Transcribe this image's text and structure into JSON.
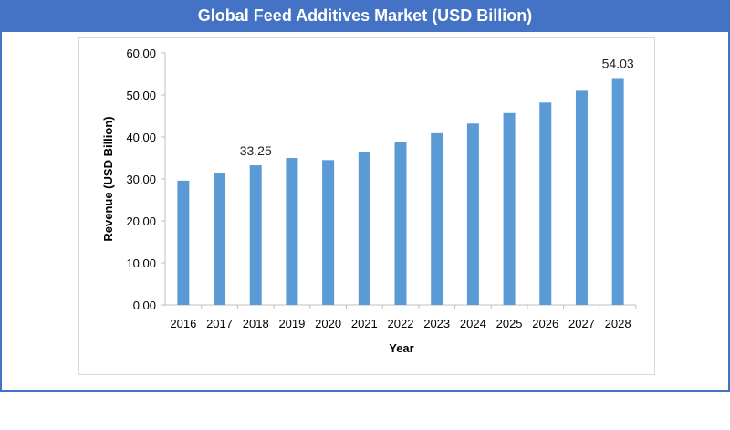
{
  "chart_data": {
    "type": "bar",
    "title": "Global Feed Additives Market (USD Billion)",
    "xlabel": "Year",
    "ylabel": "Revenue  (USD Billion)",
    "ylim": [
      0,
      60
    ],
    "yticks": [
      "0.00",
      "10.00",
      "20.00",
      "30.00",
      "40.00",
      "50.00",
      "60.00"
    ],
    "categories": [
      "2016",
      "2017",
      "2018",
      "2019",
      "2020",
      "2021",
      "2022",
      "2023",
      "2024",
      "2025",
      "2026",
      "2027",
      "2028"
    ],
    "values": [
      29.6,
      31.3,
      33.25,
      35.0,
      34.5,
      36.5,
      38.7,
      40.9,
      43.2,
      45.7,
      48.2,
      51.0,
      54.03
    ],
    "data_labels": [
      {
        "index": 2,
        "text": "33.25"
      },
      {
        "index": 12,
        "text": "54.03"
      }
    ],
    "bar_color": "#5b9bd5",
    "grid": false
  }
}
